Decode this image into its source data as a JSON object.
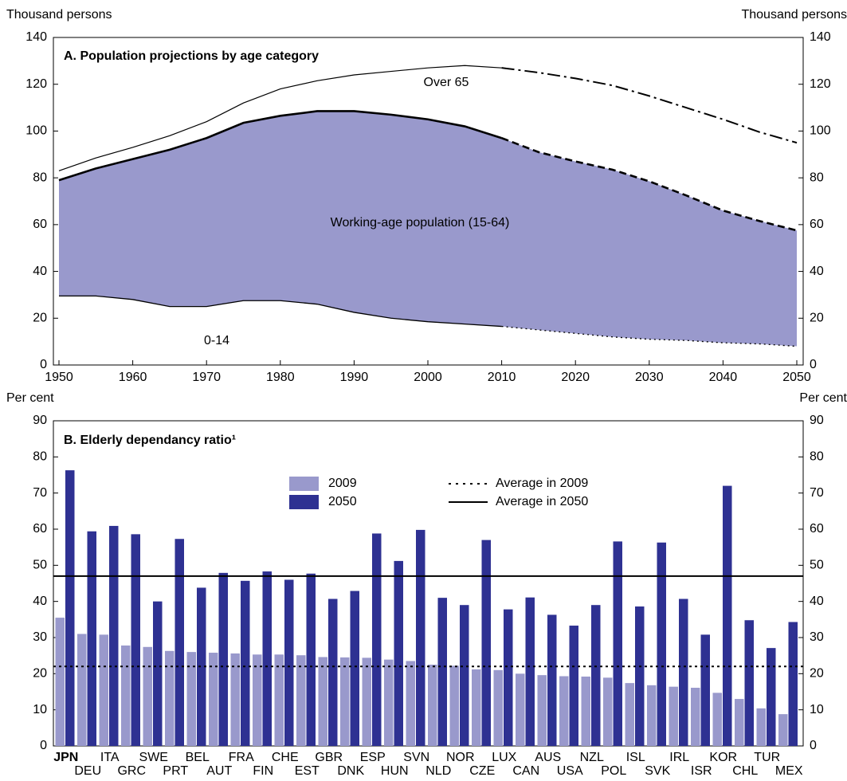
{
  "chart_data": [
    {
      "type": "stacked_area",
      "title": "A. Population projections by age category",
      "y_label": "Thousand persons",
      "y2_label": "Thousand persons",
      "x": [
        1950,
        1955,
        1960,
        1965,
        1970,
        1975,
        1980,
        1985,
        1990,
        1995,
        2000,
        2005,
        2010,
        2015,
        2020,
        2025,
        2030,
        2035,
        2040,
        2045,
        2050
      ],
      "xlim": [
        1950,
        2050
      ],
      "xticks": [
        1950,
        1960,
        1970,
        1980,
        1990,
        2000,
        2010,
        2020,
        2030,
        2040,
        2050
      ],
      "ylim": [
        0,
        140
      ],
      "yticks": [
        0,
        20,
        40,
        60,
        80,
        100,
        120,
        140
      ],
      "y2lim": [
        0,
        140
      ],
      "y2ticks": [
        0,
        20,
        40,
        60,
        80,
        100,
        120,
        140
      ],
      "projection_from": 2010,
      "series": [
        {
          "name": "0-14",
          "color": "#000000",
          "values": [
            29.5,
            29.5,
            28,
            25,
            25,
            27.5,
            27.5,
            26,
            22.5,
            20,
            18.5,
            17.5,
            16.5,
            15,
            13.5,
            12,
            11,
            10.5,
            9.5,
            9,
            8
          ]
        },
        {
          "name": "Working-age population (15-64)",
          "color": "#9999cc",
          "values": [
            49.5,
            54.5,
            60,
            67,
            72,
            76,
            79,
            82.5,
            86,
            87,
            86.5,
            84.5,
            80.5,
            76,
            73.5,
            71.5,
            67.5,
            62,
            56.5,
            52.5,
            49.5
          ]
        },
        {
          "name": "Over 65",
          "color": "#000000",
          "values": [
            4,
            4.5,
            5,
            6,
            7,
            8.5,
            11.5,
            13,
            15.5,
            18.5,
            22,
            26,
            30,
            34,
            35.5,
            36,
            36.5,
            37.5,
            39,
            38,
            37.5
          ]
        }
      ]
    },
    {
      "type": "bar",
      "title": "B. Elderly dependancy ratio¹",
      "y_label": "Per cent",
      "y2_label": "Per cent",
      "categories": [
        "JPN",
        "DEU",
        "ITA",
        "GRC",
        "SWE",
        "PRT",
        "BEL",
        "AUT",
        "FRA",
        "FIN",
        "CHE",
        "EST",
        "GBR",
        "DNK",
        "ESP",
        "HUN",
        "SVN",
        "NLD",
        "NOR",
        "CZE",
        "LUX",
        "CAN",
        "AUS",
        "USA",
        "NZL",
        "POL",
        "ISL",
        "SVK",
        "IRL",
        "ISR",
        "KOR",
        "CHL",
        "TUR",
        "MEX"
      ],
      "ylim": [
        0,
        90
      ],
      "yticks": [
        0,
        10,
        20,
        30,
        40,
        50,
        60,
        70,
        80,
        90
      ],
      "y2lim": [
        0,
        90
      ],
      "y2ticks": [
        0,
        10,
        20,
        30,
        40,
        50,
        60,
        70,
        80,
        90
      ],
      "series": [
        {
          "name": "2009",
          "color": "#9999cc",
          "values": [
            35.5,
            31,
            30.8,
            27.8,
            27.4,
            26.3,
            26,
            25.8,
            25.6,
            25.3,
            25.3,
            25.1,
            24.6,
            24.5,
            24.4,
            23.9,
            23.5,
            22.5,
            22.2,
            21.2,
            21,
            20,
            19.6,
            19.3,
            19.2,
            18.9,
            17.4,
            16.8,
            16.4,
            16.1,
            14.7,
            13,
            10.4,
            8.8
          ]
        },
        {
          "name": "2050",
          "color": "#2e3192",
          "values": [
            76.3,
            59.4,
            60.9,
            58.6,
            40,
            57.3,
            43.8,
            47.9,
            45.7,
            48.3,
            46,
            47.7,
            40.7,
            42.9,
            58.8,
            51.2,
            59.8,
            41,
            39,
            57,
            37.8,
            41.1,
            36.3,
            33.3,
            39,
            56.6,
            38.6,
            56.3,
            40.7,
            30.8,
            72,
            34.8,
            27.1,
            34.3
          ]
        }
      ],
      "reference_lines": [
        {
          "name": "Average in 2009",
          "value": 22,
          "style": "dotted",
          "color": "#000000"
        },
        {
          "name": "Average in 2050",
          "value": 47,
          "style": "solid",
          "color": "#000000"
        }
      ]
    }
  ]
}
